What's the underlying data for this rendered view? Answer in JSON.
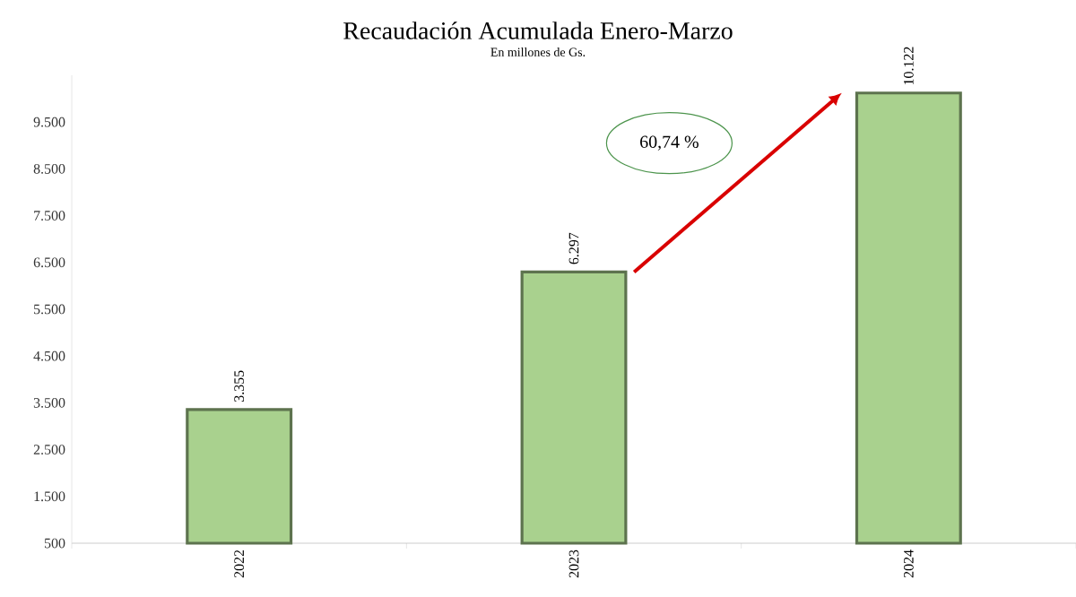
{
  "chart_data": {
    "type": "bar",
    "title": "Recaudación Acumulada Enero-Marzo",
    "subtitle": "En millones de Gs.",
    "categories": [
      "2022",
      "2023",
      "2024"
    ],
    "values": [
      3355,
      6297,
      10122
    ],
    "value_labels": [
      "3.355",
      "6.297",
      "10.122"
    ],
    "color": "#a9d18e",
    "ylim": [
      500,
      10500
    ],
    "yticks": [
      500,
      {
        "value": 1500,
        "label": "1.500"
      },
      {
        "value": 2500,
        "label": "2.500"
      },
      {
        "value": 3500,
        "label": "3.500"
      },
      {
        "value": 4500,
        "label": "4.500"
      },
      {
        "value": 5500,
        "label": "5.500"
      },
      {
        "value": 6500,
        "label": "6.500"
      },
      {
        "value": 7500,
        "label": "7.500"
      },
      {
        "value": 8500,
        "label": "8.500"
      },
      {
        "value": 9500,
        "label": "9.500"
      }
    ],
    "annotations": [
      "60,74 %"
    ]
  }
}
